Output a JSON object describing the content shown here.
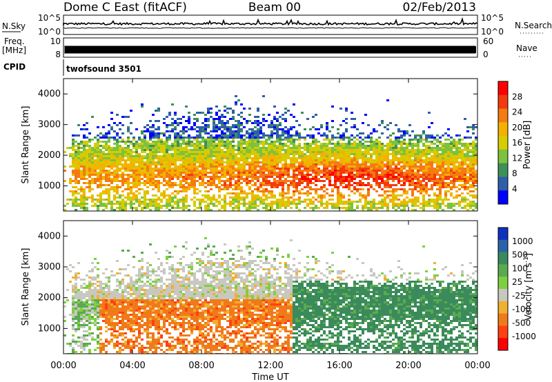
{
  "header": {
    "station": "Dome C East (fitACF)",
    "beam": "Beam 00",
    "date": "02/Feb/2013"
  },
  "panels": {
    "nsky_label": "N.Sky",
    "nsky_top": "10^5",
    "nsky_bottom": "10^0",
    "nsearch_label": "N.Search",
    "nsearch_top": "10^5",
    "nsearch_bottom": "10^0",
    "freq_label": "Freq.",
    "freq_unit": "[MHz]",
    "freq_top": "10",
    "freq_bottom": "8",
    "nave_label": "Nave",
    "nave_top": "60",
    "nave_bottom": "0",
    "cpid_label": "CPID",
    "cpid_value": "twofsound 3501"
  },
  "chart_data": [
    {
      "type": "heatmap",
      "name": "power-panel",
      "ylabel": "Slant Range [km]",
      "yticks": [
        "1000",
        "2000",
        "3000",
        "4000"
      ],
      "ylim": [
        180,
        4500
      ],
      "xlim": [
        0,
        24
      ],
      "colorbar": {
        "label": "Power [dB]",
        "ticks": [
          "28",
          "24",
          "20",
          "16",
          "12",
          "8",
          "4"
        ],
        "colors": [
          "#ff0000",
          "#f23a0c",
          "#f47a12",
          "#f4b100",
          "#d6cc00",
          "#7cc23e",
          "#3f8f58",
          "#2e5fa8",
          "#0000ff"
        ]
      }
    },
    {
      "type": "heatmap",
      "name": "velocity-panel",
      "ylabel": "Slant Range [km]",
      "yticks": [
        "1000",
        "2000",
        "3000",
        "4000"
      ],
      "ylim": [
        180,
        4500
      ],
      "xlim": [
        0,
        24
      ],
      "xlabel": "Time UT",
      "xticks": [
        "00:00",
        "04:00",
        "08:00",
        "12:00",
        "16:00",
        "20:00",
        "00:00"
      ],
      "colorbar": {
        "label": "Velocity [m s",
        "label_sup": "-1",
        "label_end": "]",
        "ticks": [
          "1000",
          "500",
          "100",
          "25",
          "-25",
          "-100",
          "-500",
          "-1000"
        ],
        "colors": [
          "#1030c0",
          "#2c62a8",
          "#3a8a5c",
          "#5aaa50",
          "#7ed040",
          "#c8c8c0",
          "#f0b030",
          "#f07a1a",
          "#ff4010",
          "#ff0000"
        ]
      }
    }
  ]
}
